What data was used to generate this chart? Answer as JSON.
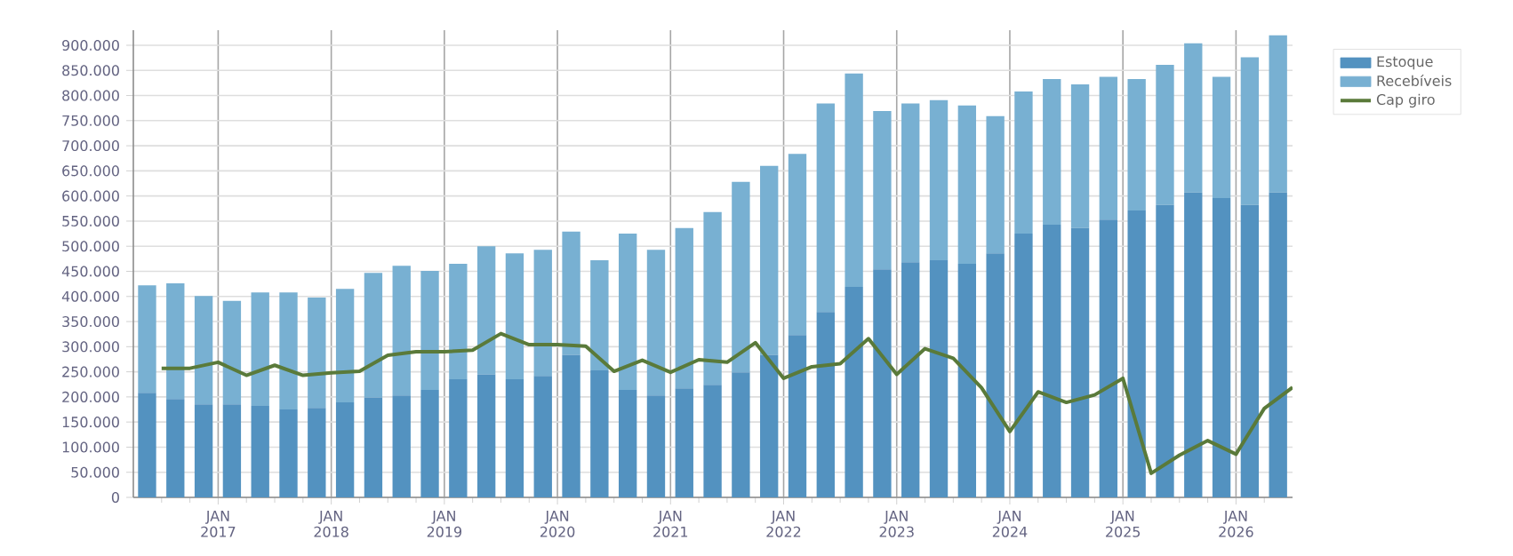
{
  "chart_data": {
    "type": "bar",
    "stacked": true,
    "x": [
      "2016-05-15",
      "2016-08-15",
      "2016-11-15",
      "2017-02-15",
      "2017-05-15",
      "2017-08-15",
      "2017-11-15",
      "2018-02-15",
      "2018-05-15",
      "2018-08-15",
      "2018-11-15",
      "2019-02-15",
      "2019-05-15",
      "2019-08-15",
      "2019-11-15",
      "2020-02-15",
      "2020-05-15",
      "2020-08-15",
      "2020-11-15",
      "2021-02-15",
      "2021-05-15",
      "2021-08-15",
      "2021-11-15",
      "2022-02-15",
      "2022-05-15",
      "2022-08-15",
      "2022-11-15",
      "2023-02-15",
      "2023-05-15",
      "2023-08-15",
      "2023-11-15",
      "2024-02-15",
      "2024-05-15",
      "2024-08-15",
      "2024-11-15",
      "2025-02-15",
      "2025-05-15",
      "2025-08-15",
      "2025-11-15",
      "2026-02-15",
      "2026-05-15"
    ],
    "series": [
      {
        "name": "Estoque",
        "color": "#5392c0",
        "values": [
          208000,
          196000,
          185000,
          185000,
          182000,
          175000,
          178000,
          189000,
          199000,
          203000,
          214000,
          235000,
          245000,
          235000,
          242000,
          284000,
          253000,
          214000,
          203000,
          217000,
          224000,
          249000,
          284000,
          323000,
          369000,
          419000,
          454000,
          468000,
          472000,
          465000,
          486000,
          525000,
          543000,
          536000,
          553000,
          571000,
          582000,
          607000,
          596000,
          582000,
          607000
        ]
      },
      {
        "name": "Recebíveis",
        "color": "#78b0d2",
        "values": [
          214000,
          230000,
          216000,
          206000,
          226000,
          233000,
          220000,
          226000,
          248000,
          258000,
          237000,
          230000,
          255000,
          251000,
          251000,
          245000,
          219000,
          311000,
          290000,
          319000,
          344000,
          379000,
          376000,
          361000,
          415000,
          425000,
          315000,
          316000,
          319000,
          315000,
          273000,
          283000,
          290000,
          286000,
          284000,
          262000,
          279000,
          297000,
          241000,
          294000,
          313000
        ]
      },
      {
        "name": "Cap giro",
        "type": "line",
        "color": "#5a7a3a",
        "x": [
          "2016-07",
          "2016-10",
          "2017-01",
          "2017-04",
          "2017-07",
          "2017-10",
          "2018-01",
          "2018-04",
          "2018-07",
          "2018-10",
          "2019-01",
          "2019-04",
          "2019-07",
          "2019-10",
          "2020-01",
          "2020-04",
          "2020-07",
          "2020-10",
          "2021-01",
          "2021-04",
          "2021-07",
          "2021-10",
          "2022-01",
          "2022-04",
          "2022-07",
          "2022-10",
          "2023-01",
          "2023-04",
          "2023-07",
          "2023-10",
          "2024-01",
          "2024-04",
          "2024-07",
          "2024-10",
          "2025-01",
          "2025-04",
          "2025-07",
          "2025-10",
          "2026-01",
          "2026-04",
          "2026-07"
        ],
        "values": [
          257000,
          257000,
          269000,
          243000,
          263000,
          243000,
          248000,
          251000,
          283000,
          290000,
          290000,
          293000,
          326000,
          304000,
          304000,
          301000,
          251000,
          273000,
          249000,
          274000,
          269000,
          308000,
          237000,
          260000,
          266000,
          316000,
          245000,
          296000,
          277000,
          218000,
          131000,
          210000,
          189000,
          204000,
          237000,
          48000,
          84000,
          113000,
          86000,
          177000,
          219000
        ]
      }
    ],
    "xlim": [
      "2016-04",
      "2026-07"
    ],
    "xticks": [
      {
        "value": "2016-07",
        "label": null
      },
      {
        "value": "2016-10",
        "label": null
      },
      {
        "value": "2017-01",
        "label": "JAN 2017"
      },
      {
        "value": "2017-04",
        "label": null
      },
      {
        "value": "2017-07",
        "label": null
      },
      {
        "value": "2017-10",
        "label": null
      },
      {
        "value": "2018-01",
        "label": "JAN 2018"
      },
      {
        "value": "2018-04",
        "label": null
      },
      {
        "value": "2018-07",
        "label": null
      },
      {
        "value": "2018-10",
        "label": null
      },
      {
        "value": "2019-01",
        "label": "JAN 2019"
      },
      {
        "value": "2019-04",
        "label": null
      },
      {
        "value": "2019-07",
        "label": null
      },
      {
        "value": "2019-10",
        "label": null
      },
      {
        "value": "2020-01",
        "label": "JAN 2020"
      },
      {
        "value": "2020-04",
        "label": null
      },
      {
        "value": "2020-07",
        "label": null
      },
      {
        "value": "2020-10",
        "label": null
      },
      {
        "value": "2021-01",
        "label": "JAN 2021"
      },
      {
        "value": "2021-04",
        "label": null
      },
      {
        "value": "2021-07",
        "label": null
      },
      {
        "value": "2021-10",
        "label": null
      },
      {
        "value": "2022-01",
        "label": "JAN 2022"
      },
      {
        "value": "2022-04",
        "label": null
      },
      {
        "value": "2022-07",
        "label": null
      },
      {
        "value": "2022-10",
        "label": null
      },
      {
        "value": "2023-01",
        "label": "JAN 2023"
      },
      {
        "value": "2023-04",
        "label": null
      },
      {
        "value": "2023-07",
        "label": null
      },
      {
        "value": "2023-10",
        "label": null
      },
      {
        "value": "2024-01",
        "label": "JAN 2024"
      },
      {
        "value": "2024-04",
        "label": null
      },
      {
        "value": "2024-07",
        "label": null
      },
      {
        "value": "2024-10",
        "label": null
      },
      {
        "value": "2025-01",
        "label": "JAN 2025"
      },
      {
        "value": "2025-04",
        "label": null
      },
      {
        "value": "2025-07",
        "label": null
      },
      {
        "value": "2025-10",
        "label": null
      },
      {
        "value": "2026-01",
        "label": "JAN 2026"
      },
      {
        "value": "2026-04",
        "label": null
      }
    ],
    "ylim": [
      0,
      930000
    ],
    "yticks": [
      0,
      {
        "value": 50000,
        "label": "50.000"
      },
      {
        "value": 100000,
        "label": "100.000"
      },
      {
        "value": 150000,
        "label": "150.000"
      },
      {
        "value": 200000,
        "label": "200.000"
      },
      {
        "value": 250000,
        "label": "250.000"
      },
      {
        "value": 300000,
        "label": "300.000"
      },
      {
        "value": 350000,
        "label": "350.000"
      },
      {
        "value": 400000,
        "label": "400.000"
      },
      {
        "value": 450000,
        "label": "450.000"
      },
      {
        "value": 500000,
        "label": "500.000"
      },
      {
        "value": 550000,
        "label": "550.000"
      },
      {
        "value": 600000,
        "label": "600.000"
      },
      {
        "value": 650000,
        "label": "650.000"
      },
      {
        "value": 700000,
        "label": "700.000"
      },
      {
        "value": 750000,
        "label": "750.000"
      },
      {
        "value": 800000,
        "label": "800.000"
      },
      {
        "value": 850000,
        "label": "850.000"
      },
      {
        "value": 900000,
        "label": "900.000"
      }
    ],
    "grid": true,
    "legend": "top right"
  }
}
